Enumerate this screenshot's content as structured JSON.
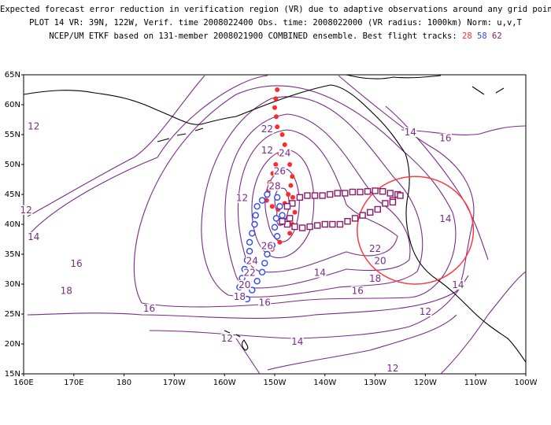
{
  "header": {
    "line1": "Expected forecast error reduction in verification region (VR) due to adaptive observations around any grid point.",
    "line2": "PLOT 14 VR: 39N, 122W, Verif. time 2008022400 Obs. time: 2008022000 (VR radius: 1000km) Norm: u,v,T",
    "line3_prefix": "NCEP/UM ETKF based on 131-member 2008021900 COMBINED ensemble.  Best flight tracks:",
    "track28": "28",
    "track58": "58",
    "track62": "62"
  },
  "axes": {
    "lat_labels": [
      "65N",
      "60N",
      "55N",
      "50N",
      "45N",
      "40N",
      "35N",
      "30N",
      "25N",
      "20N",
      "15N"
    ],
    "lon_labels": [
      "160E",
      "170E",
      "180",
      "170W",
      "160W",
      "150W",
      "140W",
      "130W",
      "120W",
      "110W",
      "100W"
    ]
  },
  "contour_labels": [
    {
      "text": "12",
      "lon": -151.5,
      "lat": 52.0
    },
    {
      "text": "12",
      "lon": -156.5,
      "lat": 44.0
    },
    {
      "text": "14",
      "lon": -141.0,
      "lat": 31.5
    },
    {
      "text": "14",
      "lon": -145.5,
      "lat": 20.0
    },
    {
      "text": "16",
      "lon": 170.5,
      "lat": 33.0
    },
    {
      "text": "16",
      "lon": -175.0,
      "lat": 25.5
    },
    {
      "text": "18",
      "lon": 168.5,
      "lat": 28.5
    },
    {
      "text": "18",
      "lon": -157.0,
      "lat": 27.5
    },
    {
      "text": "16",
      "lon": -152.0,
      "lat": 26.5
    },
    {
      "text": "20",
      "lon": -156.0,
      "lat": 29.5
    },
    {
      "text": "22",
      "lon": -155.0,
      "lat": 31.5
    },
    {
      "text": "24",
      "lon": -154.5,
      "lat": 33.5
    },
    {
      "text": "26",
      "lon": -151.5,
      "lat": 36.0
    },
    {
      "text": "28",
      "lon": -150.0,
      "lat": 46.0
    },
    {
      "text": "26",
      "lon": -149.0,
      "lat": 48.5
    },
    {
      "text": "24",
      "lon": -148.0,
      "lat": 51.5
    },
    {
      "text": "22",
      "lon": -151.5,
      "lat": 55.5
    },
    {
      "text": "22",
      "lon": -130.0,
      "lat": 35.5
    },
    {
      "text": "20",
      "lon": -129.0,
      "lat": 33.5
    },
    {
      "text": "18",
      "lon": -130.0,
      "lat": 30.5
    },
    {
      "text": "16",
      "lon": -133.5,
      "lat": 28.5
    },
    {
      "text": "14",
      "lon": -123.0,
      "lat": 55.0
    },
    {
      "text": "16",
      "lon": -116.0,
      "lat": 54.0
    },
    {
      "text": "14",
      "lon": -116.0,
      "lat": 40.5
    },
    {
      "text": "14",
      "lon": -113.5,
      "lat": 29.5
    },
    {
      "text": "12",
      "lon": -120.0,
      "lat": 25.0
    },
    {
      "text": "12",
      "lon": -126.5,
      "lat": 15.5
    },
    {
      "text": "12",
      "lon": 162.0,
      "lat": 56.0
    },
    {
      "text": "12",
      "lon": 160.5,
      "lat": 42.0
    },
    {
      "text": "14",
      "lon": 162.0,
      "lat": 37.5
    },
    {
      "text": "12",
      "lon": -159.5,
      "lat": 20.5
    }
  ],
  "tracks": {
    "track28": {
      "color": "#ff2a2a",
      "shape": "dot",
      "points": [
        [
          -149.5,
          62.5
        ],
        [
          -149.8,
          61
        ],
        [
          -150.0,
          59.5
        ],
        [
          -149.7,
          58
        ],
        [
          -149.5,
          56.3
        ],
        [
          -148.5,
          55
        ],
        [
          -148.0,
          53.3
        ],
        [
          -149.0,
          51.8
        ],
        [
          -149.8,
          50.0
        ],
        [
          -150.4,
          48.5
        ],
        [
          -151.0,
          47.0
        ],
        [
          -151.3,
          45.5
        ],
        [
          -151.6,
          44.0
        ],
        [
          -150.5,
          43.0
        ],
        [
          -149.3,
          42.5
        ],
        [
          -148.0,
          43.5
        ],
        [
          -147.3,
          45.0
        ],
        [
          -146.8,
          46.5
        ],
        [
          -146.5,
          48
        ],
        [
          -147.0,
          50
        ],
        [
          -146.4,
          44.5
        ],
        [
          -146.0,
          42.0
        ],
        [
          -146.5,
          40.0
        ],
        [
          -147.0,
          38.5
        ],
        [
          -149.0,
          37.0
        ],
        [
          -150.5,
          35.8
        ],
        [
          -152.0,
          36.5
        ]
      ]
    },
    "track58": {
      "color": "#2b48ff",
      "shape": "circle",
      "points": [
        [
          -151.5,
          45.0
        ],
        [
          -152.5,
          44.0
        ],
        [
          -153.5,
          43.0
        ],
        [
          -153.8,
          41.5
        ],
        [
          -154.0,
          40.0
        ],
        [
          -154.5,
          38.5
        ],
        [
          -155.0,
          37.0
        ],
        [
          -155.0,
          35.5
        ],
        [
          -155.5,
          34.0
        ],
        [
          -156.0,
          32.5
        ],
        [
          -156.5,
          31.0
        ],
        [
          -157.0,
          29.5
        ],
        [
          -157.5,
          28.0
        ],
        [
          -155.5,
          27.5
        ],
        [
          -154.5,
          29.0
        ],
        [
          -153.5,
          30.5
        ],
        [
          -152.5,
          32.0
        ],
        [
          -152.0,
          33.5
        ],
        [
          -151.5,
          35.0
        ],
        [
          -150.5,
          36.5
        ],
        [
          -149.5,
          38.0
        ],
        [
          -150.0,
          39.5
        ],
        [
          -149.7,
          41.0
        ],
        [
          -148.5,
          41.5
        ],
        [
          -149.0,
          43.0
        ],
        [
          -149.5,
          44.5
        ]
      ]
    },
    "track62": {
      "color": "#8a1a6a",
      "shape": "square",
      "points": [
        [
          -146.5,
          43.5
        ],
        [
          -145.0,
          44.5
        ],
        [
          -143.5,
          44.8
        ],
        [
          -142.0,
          44.8
        ],
        [
          -140.5,
          44.8
        ],
        [
          -139.0,
          45.0
        ],
        [
          -137.5,
          45.2
        ],
        [
          -136.0,
          45.2
        ],
        [
          -134.5,
          45.4
        ],
        [
          -133.0,
          45.4
        ],
        [
          -131.5,
          45.5
        ],
        [
          -130.0,
          45.6
        ],
        [
          -128.5,
          45.5
        ],
        [
          -127.0,
          45.2
        ],
        [
          -126.5,
          44.0
        ],
        [
          -125.5,
          45.0
        ],
        [
          -125.0,
          44.8
        ],
        [
          -126.5,
          43.7
        ],
        [
          -128.0,
          43.5
        ],
        [
          -129.5,
          42.5
        ],
        [
          -131.0,
          42.0
        ],
        [
          -132.5,
          41.5
        ],
        [
          -134.0,
          41.0
        ],
        [
          -135.5,
          40.5
        ],
        [
          -137.0,
          40.0
        ],
        [
          -138.5,
          40.0
        ],
        [
          -140.0,
          40.0
        ],
        [
          -141.5,
          39.8
        ],
        [
          -143.0,
          39.6
        ],
        [
          -144.5,
          39.4
        ],
        [
          -146.0,
          39.6
        ],
        [
          -147.5,
          40.0
        ],
        [
          -148.5,
          40.5
        ],
        [
          -147.0,
          41.0
        ],
        [
          -147.5,
          43.0
        ]
      ]
    }
  },
  "verification_region": {
    "center_lon": -122,
    "center_lat": 39,
    "radius_km": 1000,
    "color": "#ff3a3a"
  },
  "colors": {
    "contour": "#7a2a8a",
    "coast": "#000000"
  }
}
